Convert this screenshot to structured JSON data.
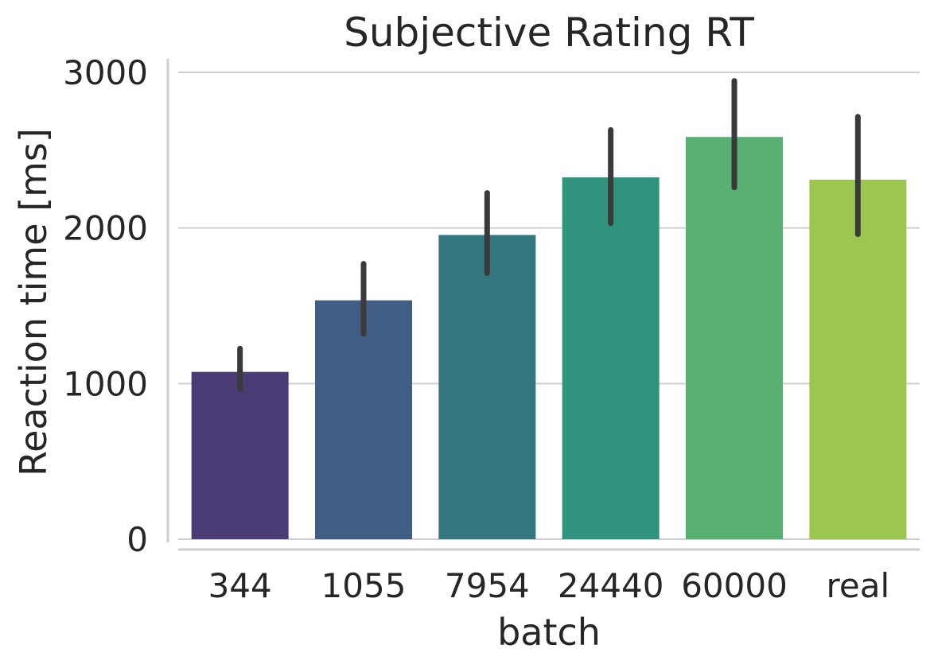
{
  "chart_data": {
    "type": "bar",
    "title": "Subjective Rating RT",
    "xlabel": "batch",
    "ylabel": "Reaction time [ms]",
    "categories": [
      "344",
      "1055",
      "7954",
      "24440",
      "60000",
      "real"
    ],
    "values": [
      1075,
      1535,
      1955,
      2325,
      2585,
      2310
    ],
    "error_bars": [
      {
        "low": 965,
        "high": 1225
      },
      {
        "low": 1320,
        "high": 1770
      },
      {
        "low": 1710,
        "high": 2225
      },
      {
        "low": 2030,
        "high": 2630
      },
      {
        "low": 2260,
        "high": 2945
      },
      {
        "low": 1960,
        "high": 2715
      }
    ],
    "bar_colors": [
      "#4b3b75",
      "#405d83",
      "#35777f",
      "#2f937d",
      "#58b073",
      "#9bc64f"
    ],
    "errorbar_color": "#3a3a3a",
    "yticks": [
      0,
      1000,
      2000,
      3000
    ],
    "ytick_labels": [
      "0",
      "1000",
      "2000",
      "3000"
    ],
    "ylim": [
      0,
      3100
    ],
    "grid": "y",
    "legend": "none"
  }
}
